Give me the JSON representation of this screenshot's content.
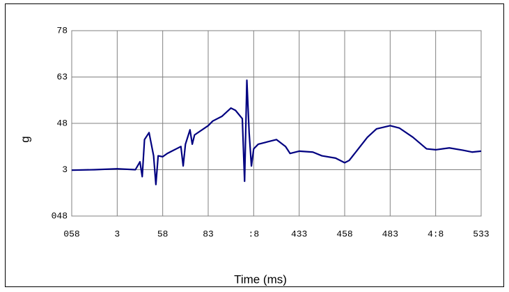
{
  "chart_data": {
    "type": "line",
    "xlabel": "Time (ms)",
    "ylabel": "g",
    "xlim": [
      0,
      9
    ],
    "ylim": [
      0,
      4
    ],
    "xticks": [
      {
        "value": 0,
        "label": "058"
      },
      {
        "value": 1,
        "label": "3"
      },
      {
        "value": 2,
        "label": "58"
      },
      {
        "value": 3,
        "label": "83"
      },
      {
        "value": 4,
        "label": ":8"
      },
      {
        "value": 5,
        "label": "433"
      },
      {
        "value": 6,
        "label": "458"
      },
      {
        "value": 7,
        "label": "483"
      },
      {
        "value": 8,
        "label": "4:8"
      },
      {
        "value": 9,
        "label": "533"
      }
    ],
    "yticks": [
      {
        "value": 0,
        "label": "048"
      },
      {
        "value": 1,
        "label": "3"
      },
      {
        "value": 2,
        "label": "48"
      },
      {
        "value": 3,
        "label": "63"
      },
      {
        "value": 4,
        "label": "78"
      }
    ],
    "grid": true,
    "series": [
      {
        "color": "#000080",
        "x": [
          0,
          0.5,
          1,
          1.4,
          1.5,
          1.55,
          1.6,
          1.7,
          1.8,
          1.85,
          1.9,
          2.0,
          2.1,
          2.2,
          2.4,
          2.45,
          2.5,
          2.6,
          2.65,
          2.7,
          3.0,
          3.1,
          3.3,
          3.5,
          3.6,
          3.75,
          3.8,
          3.85,
          3.9,
          3.95,
          4.0,
          4.1,
          4.3,
          4.5,
          4.7,
          4.8,
          5.0,
          5.3,
          5.5,
          5.8,
          6.0,
          6.1,
          6.3,
          6.5,
          6.7,
          7.0,
          7.2,
          7.5,
          7.8,
          8.0,
          8.3,
          8.6,
          8.8,
          9.0
        ],
        "values": [
          0.99,
          1.0,
          1.02,
          1.0,
          1.17,
          0.85,
          1.65,
          1.8,
          1.3,
          0.68,
          1.3,
          1.28,
          1.35,
          1.4,
          1.5,
          1.08,
          1.55,
          1.86,
          1.55,
          1.75,
          1.95,
          2.05,
          2.15,
          2.33,
          2.28,
          2.1,
          0.75,
          2.93,
          1.8,
          1.08,
          1.45,
          1.55,
          1.6,
          1.65,
          1.5,
          1.35,
          1.4,
          1.38,
          1.3,
          1.25,
          1.15,
          1.2,
          1.45,
          1.7,
          1.88,
          1.95,
          1.9,
          1.7,
          1.45,
          1.43,
          1.47,
          1.42,
          1.38,
          1.4
        ]
      }
    ]
  }
}
